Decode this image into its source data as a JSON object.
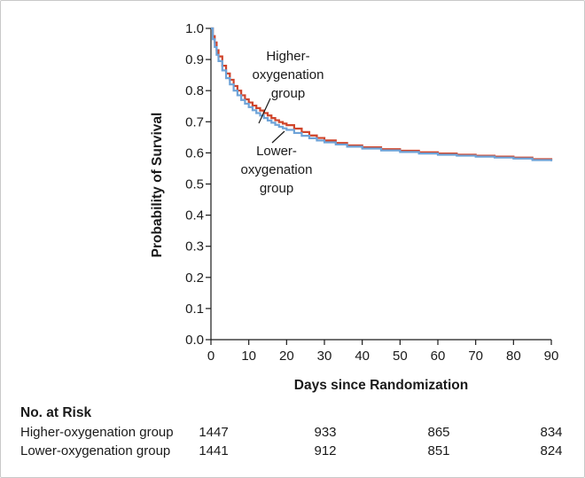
{
  "chart_data": {
    "type": "line",
    "step": true,
    "xlabel": "Days since Randomization",
    "ylabel": "Probability of Survival",
    "xlim": [
      0,
      90
    ],
    "ylim": [
      0,
      1.0
    ],
    "x_ticks": [
      0,
      10,
      20,
      30,
      40,
      50,
      60,
      70,
      80,
      90
    ],
    "y_ticks": [
      "0.0",
      "0.1",
      "0.2",
      "0.3",
      "0.4",
      "0.5",
      "0.6",
      "0.7",
      "0.8",
      "0.9",
      "1.0"
    ],
    "grid": false,
    "series": [
      {
        "name": "Higher-oxygenation group",
        "color": "#d0442a",
        "x": [
          0,
          0.5,
          1,
          1.5,
          2,
          3,
          4,
          5,
          6,
          7,
          8,
          9,
          10,
          11,
          12,
          13,
          14,
          15,
          16,
          17,
          18,
          19,
          20,
          22,
          24,
          26,
          28,
          30,
          33,
          36,
          40,
          45,
          50,
          55,
          60,
          65,
          70,
          75,
          80,
          85,
          90
        ],
        "y": [
          1.0,
          0.975,
          0.955,
          0.93,
          0.91,
          0.88,
          0.855,
          0.835,
          0.815,
          0.8,
          0.785,
          0.772,
          0.762,
          0.752,
          0.744,
          0.736,
          0.728,
          0.72,
          0.712,
          0.705,
          0.699,
          0.694,
          0.689,
          0.678,
          0.667,
          0.656,
          0.648,
          0.64,
          0.632,
          0.624,
          0.618,
          0.612,
          0.607,
          0.602,
          0.598,
          0.594,
          0.591,
          0.588,
          0.585,
          0.58,
          0.576
        ]
      },
      {
        "name": "Lower-oxygenation group",
        "color": "#6ea3d8",
        "x": [
          0,
          0.5,
          1,
          1.5,
          2,
          3,
          4,
          5,
          6,
          7,
          8,
          9,
          10,
          11,
          12,
          13,
          14,
          15,
          16,
          17,
          18,
          19,
          20,
          22,
          24,
          26,
          28,
          30,
          33,
          36,
          40,
          45,
          50,
          55,
          60,
          65,
          70,
          75,
          80,
          85,
          90
        ],
        "y": [
          1.0,
          0.965,
          0.94,
          0.915,
          0.895,
          0.865,
          0.84,
          0.82,
          0.8,
          0.785,
          0.77,
          0.758,
          0.747,
          0.737,
          0.728,
          0.72,
          0.712,
          0.704,
          0.697,
          0.69,
          0.684,
          0.679,
          0.674,
          0.664,
          0.655,
          0.647,
          0.64,
          0.634,
          0.627,
          0.62,
          0.614,
          0.608,
          0.603,
          0.598,
          0.594,
          0.591,
          0.588,
          0.585,
          0.582,
          0.577,
          0.573
        ]
      }
    ],
    "annotations": [
      {
        "lines": [
          "Higher-",
          "oxygenation",
          "group"
        ],
        "series": "Higher-oxygenation group"
      },
      {
        "lines": [
          "Lower-",
          "oxygenation",
          "group"
        ],
        "series": "Lower-oxygenation group"
      }
    ]
  },
  "risk_table": {
    "title": "No. at Risk",
    "days": [
      0,
      30,
      60,
      90
    ],
    "rows": [
      {
        "label": "Higher-oxygenation group",
        "values": [
          "1447",
          "933",
          "865",
          "834"
        ]
      },
      {
        "label": "Lower-oxygenation group",
        "values": [
          "1441",
          "912",
          "851",
          "824"
        ]
      }
    ]
  }
}
